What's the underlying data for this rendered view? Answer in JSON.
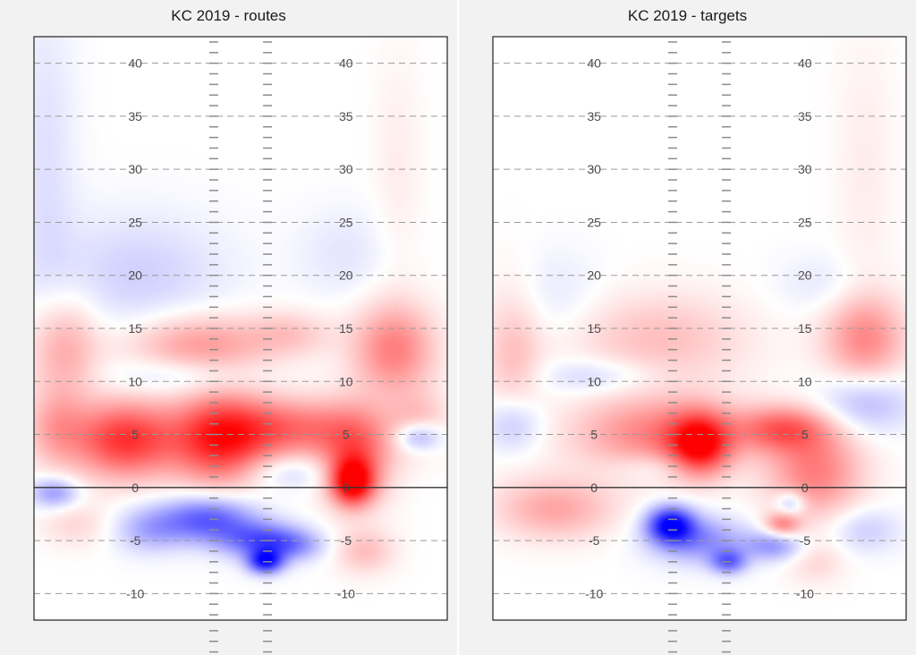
{
  "chart_data": [
    {
      "type": "heatmap",
      "title": "KC 2019 - routes",
      "xlabel": "",
      "ylabel": "",
      "ylim": [
        -12.5,
        42.5
      ],
      "yticks": [
        -10,
        -5,
        0,
        5,
        10,
        15,
        20,
        25,
        30,
        35,
        40
      ],
      "line_of_scrimmage": 0,
      "blobs": [
        {
          "x": 0.22,
          "y": 4.5,
          "sx": 0.09,
          "sy": 2.5,
          "v": 0.8
        },
        {
          "x": 0.45,
          "y": 4.5,
          "sx": 0.08,
          "sy": 3,
          "v": 0.8
        },
        {
          "x": 0.62,
          "y": 5.5,
          "sx": 0.12,
          "sy": 2,
          "v": 0.55
        },
        {
          "x": 0.78,
          "y": 3,
          "sx": 0.06,
          "sy": 3,
          "v": 0.55
        },
        {
          "x": 0.77,
          "y": 0.5,
          "sx": 0.035,
          "sy": 1.5,
          "v": 0.9
        },
        {
          "x": 0.05,
          "y": 5.5,
          "sx": 0.05,
          "sy": 2.5,
          "v": 0.3
        },
        {
          "x": 0.93,
          "y": 6,
          "sx": 0.05,
          "sy": 2,
          "v": 0.25
        },
        {
          "x": 0.07,
          "y": 13,
          "sx": 0.06,
          "sy": 3.5,
          "v": 0.35
        },
        {
          "x": 0.4,
          "y": 13.5,
          "sx": 0.12,
          "sy": 2,
          "v": 0.4
        },
        {
          "x": 0.62,
          "y": 14.5,
          "sx": 0.07,
          "sy": 1.5,
          "v": 0.2
        },
        {
          "x": 0.87,
          "y": 13,
          "sx": 0.07,
          "sy": 3,
          "v": 0.5
        },
        {
          "x": 0.8,
          "y": -6,
          "sx": 0.05,
          "sy": 1.5,
          "v": 0.25
        },
        {
          "x": 0.1,
          "y": -3.5,
          "sx": 0.06,
          "sy": 1.5,
          "v": 0.15
        },
        {
          "x": 0.62,
          "y": 1.5,
          "sx": 0.08,
          "sy": 1.2,
          "v": -0.2
        },
        {
          "x": 0.42,
          "y": -3,
          "sx": 0.08,
          "sy": 1.5,
          "v": -0.65
        },
        {
          "x": 0.55,
          "y": -5,
          "sx": 0.07,
          "sy": 1.2,
          "v": -0.6
        },
        {
          "x": 0.56,
          "y": -7,
          "sx": 0.03,
          "sy": 0.8,
          "v": -0.85
        },
        {
          "x": 0.28,
          "y": -4,
          "sx": 0.06,
          "sy": 1.5,
          "v": -0.3
        },
        {
          "x": 0.63,
          "y": -5.5,
          "sx": 0.05,
          "sy": 1,
          "v": -0.3
        },
        {
          "x": 0.05,
          "y": -0.5,
          "sx": 0.04,
          "sy": 1,
          "v": -0.4
        },
        {
          "x": 0.93,
          "y": 4.8,
          "sx": 0.04,
          "sy": 1,
          "v": -0.45
        },
        {
          "x": 0.25,
          "y": 20,
          "sx": 0.15,
          "sy": 4,
          "v": -0.18
        },
        {
          "x": 0.03,
          "y": 30,
          "sx": 0.05,
          "sy": 12,
          "v": -0.12
        },
        {
          "x": 0.35,
          "y": 10.5,
          "sx": 0.12,
          "sy": 1.2,
          "v": -0.18
        },
        {
          "x": 0.75,
          "y": 22,
          "sx": 0.08,
          "sy": 3,
          "v": -0.1
        },
        {
          "x": 0.88,
          "y": 30,
          "sx": 0.04,
          "sy": 8,
          "v": 0.07
        }
      ]
    },
    {
      "type": "heatmap",
      "title": "KC 2019 - targets",
      "xlabel": "",
      "ylabel": "",
      "ylim": [
        -12.5,
        42.5
      ],
      "yticks": [
        -10,
        -5,
        0,
        5,
        10,
        15,
        20,
        25,
        30,
        35,
        40
      ],
      "line_of_scrimmage": 0,
      "blobs": [
        {
          "x": 0.5,
          "y": 4,
          "sx": 0.05,
          "sy": 2,
          "v": 0.85
        },
        {
          "x": 0.4,
          "y": 5,
          "sx": 0.14,
          "sy": 2.5,
          "v": 0.5
        },
        {
          "x": 0.7,
          "y": 5.5,
          "sx": 0.08,
          "sy": 1.5,
          "v": 0.55
        },
        {
          "x": 0.78,
          "y": 1.5,
          "sx": 0.08,
          "sy": 3,
          "v": 0.5
        },
        {
          "x": 0.15,
          "y": -2,
          "sx": 0.1,
          "sy": 2,
          "v": 0.35
        },
        {
          "x": 0.05,
          "y": 12,
          "sx": 0.05,
          "sy": 5,
          "v": 0.25
        },
        {
          "x": 0.4,
          "y": 14,
          "sx": 0.15,
          "sy": 3,
          "v": 0.25
        },
        {
          "x": 0.9,
          "y": 14,
          "sx": 0.07,
          "sy": 3,
          "v": 0.45
        },
        {
          "x": 0.7,
          "y": -3.5,
          "sx": 0.03,
          "sy": 0.8,
          "v": 0.45
        },
        {
          "x": 0.78,
          "y": -7,
          "sx": 0.05,
          "sy": 1.5,
          "v": 0.15
        },
        {
          "x": 0.43,
          "y": -3.5,
          "sx": 0.04,
          "sy": 1.2,
          "v": -0.95
        },
        {
          "x": 0.5,
          "y": -5,
          "sx": 0.08,
          "sy": 1.5,
          "v": -0.45
        },
        {
          "x": 0.57,
          "y": -7,
          "sx": 0.03,
          "sy": 0.8,
          "v": -0.55
        },
        {
          "x": 0.68,
          "y": -5.5,
          "sx": 0.05,
          "sy": 1,
          "v": -0.4
        },
        {
          "x": 0.72,
          "y": -1.5,
          "sx": 0.025,
          "sy": 0.8,
          "v": -0.35
        },
        {
          "x": 0.05,
          "y": 6,
          "sx": 0.05,
          "sy": 2,
          "v": -0.3
        },
        {
          "x": 0.9,
          "y": 8,
          "sx": 0.08,
          "sy": 2,
          "v": -0.3
        },
        {
          "x": 0.25,
          "y": 10.5,
          "sx": 0.1,
          "sy": 1.2,
          "v": -0.2
        },
        {
          "x": 0.9,
          "y": -4,
          "sx": 0.06,
          "sy": 1.5,
          "v": -0.2
        },
        {
          "x": 0.4,
          "y": 2,
          "sx": 0.08,
          "sy": 1,
          "v": -0.15
        },
        {
          "x": 0.15,
          "y": 18,
          "sx": 0.08,
          "sy": 3,
          "v": -0.1
        },
        {
          "x": 0.8,
          "y": 19,
          "sx": 0.08,
          "sy": 2,
          "v": -0.1
        },
        {
          "x": 0.9,
          "y": 30,
          "sx": 0.05,
          "sy": 10,
          "v": 0.07
        }
      ]
    }
  ]
}
